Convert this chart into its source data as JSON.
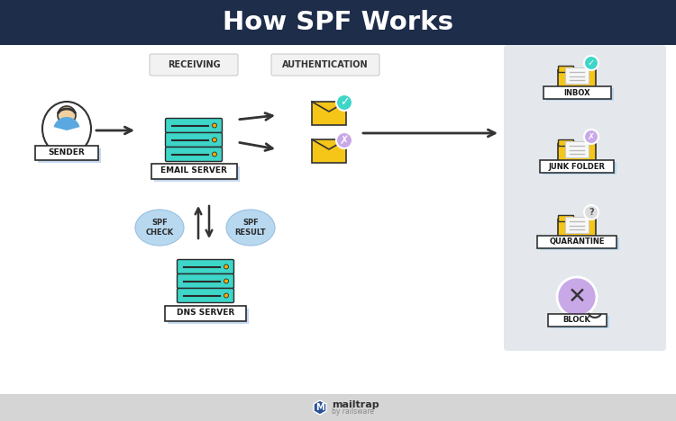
{
  "title": "How SPF Works",
  "title_color": "#ffffff",
  "header_bg": "#1e2d4a",
  "bg_color": "#ffffff",
  "teal": "#3dd6c8",
  "yellow": "#f5c518",
  "purple": "#c9a8e8",
  "blue_oval": "#b8d8f0",
  "labels": {
    "sender": "SENDER",
    "email_server": "EMAIL SERVER",
    "dns_server": "DNS SERVER",
    "receiving": "RECEIVING",
    "authentication": "AUTHENTICATION",
    "spf_check": "SPF\nCHECK",
    "spf_result": "SPF\nRESULT",
    "inbox": "INBOX",
    "junk": "JUNK FOLDER",
    "quarantine": "QUARANTINE",
    "block": "BLOCK"
  }
}
